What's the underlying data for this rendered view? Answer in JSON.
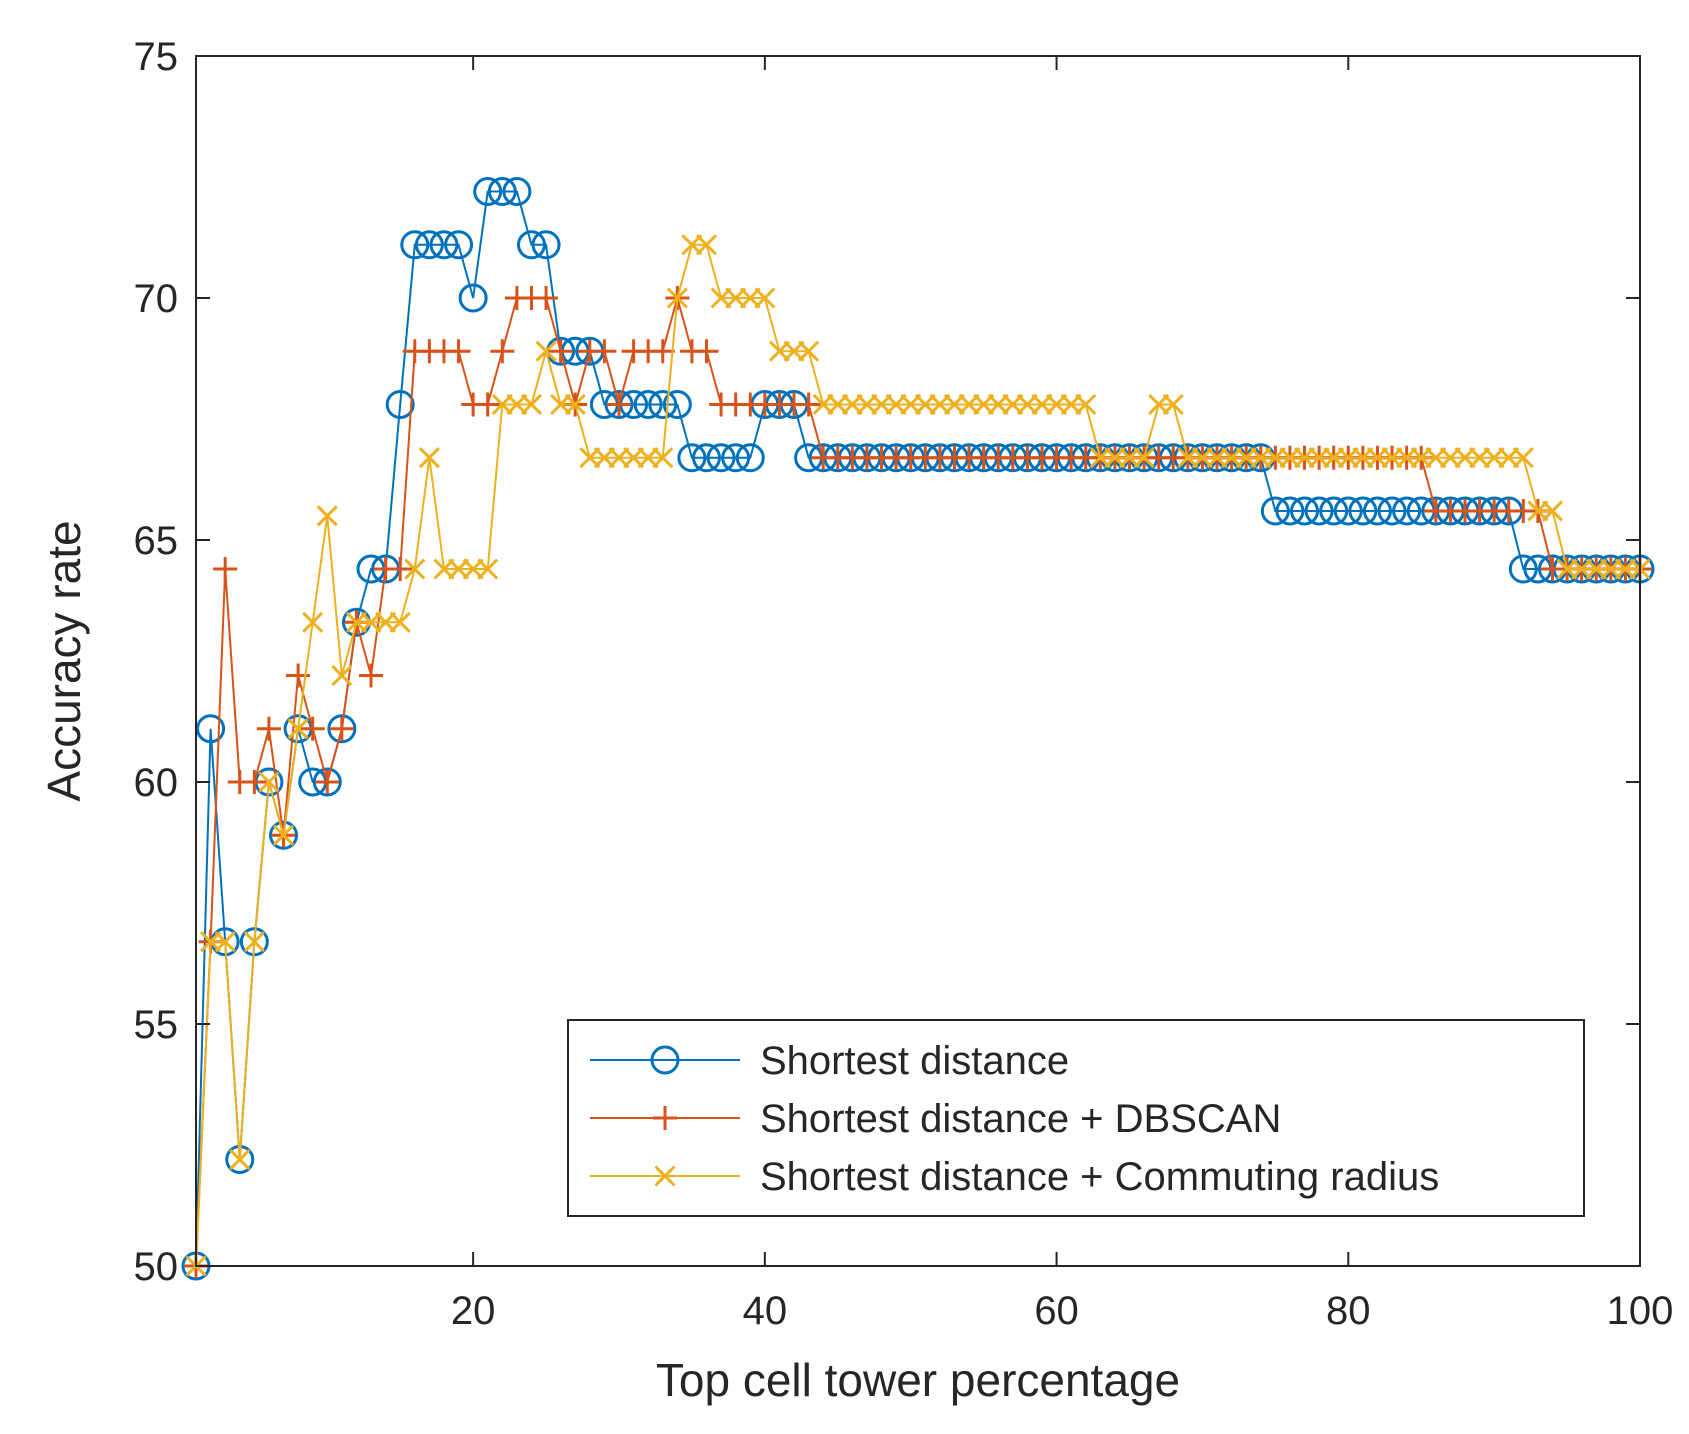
{
  "chart_data": {
    "type": "line",
    "title": "",
    "xlabel": "Top cell tower percentage",
    "ylabel": "Accuracy rate",
    "xlim": [
      1,
      100
    ],
    "ylim": [
      50,
      75
    ],
    "xticks": [
      20,
      40,
      60,
      80,
      100
    ],
    "yticks": [
      50,
      55,
      60,
      65,
      70,
      75
    ],
    "x_tick_labels": [
      "20",
      "40",
      "60",
      "80",
      "100"
    ],
    "y_tick_labels": [
      "50",
      "55",
      "60",
      "65",
      "70",
      "75"
    ],
    "grid": false,
    "legend_position": "lower-right",
    "series": [
      {
        "name": "Shortest distance",
        "marker": "o",
        "color": "#0072BD",
        "values": [
          50.0,
          61.1,
          56.7,
          52.2,
          56.7,
          60.0,
          58.9,
          61.1,
          60.0,
          60.0,
          61.1,
          63.3,
          64.4,
          64.4,
          67.8,
          71.1,
          71.1,
          71.1,
          71.1,
          70.0,
          72.2,
          72.2,
          72.2,
          71.1,
          71.1,
          68.9,
          68.9,
          68.9,
          67.8,
          67.8,
          67.8,
          67.8,
          67.8,
          67.8,
          66.7,
          66.7,
          66.7,
          66.7,
          66.7,
          67.8,
          67.8,
          67.8,
          66.7,
          66.7,
          66.7,
          66.7,
          66.7,
          66.7,
          66.7,
          66.7,
          66.7,
          66.7,
          66.7,
          66.7,
          66.7,
          66.7,
          66.7,
          66.7,
          66.7,
          66.7,
          66.7,
          66.7,
          66.7,
          66.7,
          66.7,
          66.7,
          66.7,
          66.7,
          66.7,
          66.7,
          66.7,
          66.7,
          66.7,
          66.7,
          65.6,
          65.6,
          65.6,
          65.6,
          65.6,
          65.6,
          65.6,
          65.6,
          65.6,
          65.6,
          65.6,
          65.6,
          65.6,
          65.6,
          65.6,
          65.6,
          65.6,
          64.4,
          64.4,
          64.4,
          64.4,
          64.4,
          64.4,
          64.4,
          64.4,
          64.4
        ]
      },
      {
        "name": "Shortest distance + DBSCAN",
        "marker": "+",
        "color": "#D95319",
        "values": [
          50.0,
          56.7,
          64.4,
          60.0,
          60.0,
          61.1,
          58.9,
          62.2,
          61.1,
          60.0,
          61.1,
          63.3,
          62.2,
          64.4,
          64.4,
          68.9,
          68.9,
          68.9,
          68.9,
          67.8,
          67.8,
          68.9,
          70.0,
          70.0,
          70.0,
          68.9,
          67.8,
          68.9,
          68.9,
          67.8,
          68.9,
          68.9,
          68.9,
          70.0,
          68.9,
          68.9,
          67.8,
          67.8,
          67.8,
          67.8,
          67.8,
          67.8,
          67.8,
          66.7,
          66.7,
          66.7,
          66.7,
          66.7,
          66.7,
          66.7,
          66.7,
          66.7,
          66.7,
          66.7,
          66.7,
          66.7,
          66.7,
          66.7,
          66.7,
          66.7,
          66.7,
          66.7,
          66.7,
          66.7,
          66.7,
          66.7,
          66.7,
          66.7,
          66.7,
          66.7,
          66.7,
          66.7,
          66.7,
          66.7,
          66.7,
          66.7,
          66.7,
          66.7,
          66.7,
          66.7,
          66.7,
          66.7,
          66.7,
          66.7,
          66.7,
          65.6,
          65.6,
          65.6,
          65.6,
          65.6,
          65.6,
          65.6,
          65.6,
          64.4,
          64.4,
          64.4,
          64.4,
          64.4,
          64.4,
          64.4
        ]
      },
      {
        "name": "Shortest distance + Commuting radius",
        "marker": "x",
        "color": "#EDB120",
        "values": [
          50.0,
          56.7,
          56.7,
          52.2,
          56.7,
          60.0,
          58.9,
          61.1,
          63.3,
          65.5,
          62.2,
          63.3,
          63.3,
          63.3,
          63.3,
          64.4,
          66.7,
          64.4,
          64.4,
          64.4,
          64.4,
          67.8,
          67.8,
          67.8,
          68.9,
          67.8,
          67.8,
          66.7,
          66.7,
          66.7,
          66.7,
          66.7,
          66.7,
          70.0,
          71.1,
          71.1,
          70.0,
          70.0,
          70.0,
          70.0,
          68.9,
          68.9,
          68.9,
          67.8,
          67.8,
          67.8,
          67.8,
          67.8,
          67.8,
          67.8,
          67.8,
          67.8,
          67.8,
          67.8,
          67.8,
          67.8,
          67.8,
          67.8,
          67.8,
          67.8,
          67.8,
          67.8,
          66.7,
          66.7,
          66.7,
          66.7,
          67.8,
          67.8,
          66.7,
          66.7,
          66.7,
          66.7,
          66.7,
          66.7,
          66.7,
          66.7,
          66.7,
          66.7,
          66.7,
          66.7,
          66.7,
          66.7,
          66.7,
          66.7,
          66.7,
          66.7,
          66.7,
          66.7,
          66.7,
          66.7,
          66.7,
          66.7,
          65.6,
          65.6,
          64.4,
          64.4,
          64.4,
          64.4,
          64.4,
          64.4
        ]
      }
    ]
  }
}
